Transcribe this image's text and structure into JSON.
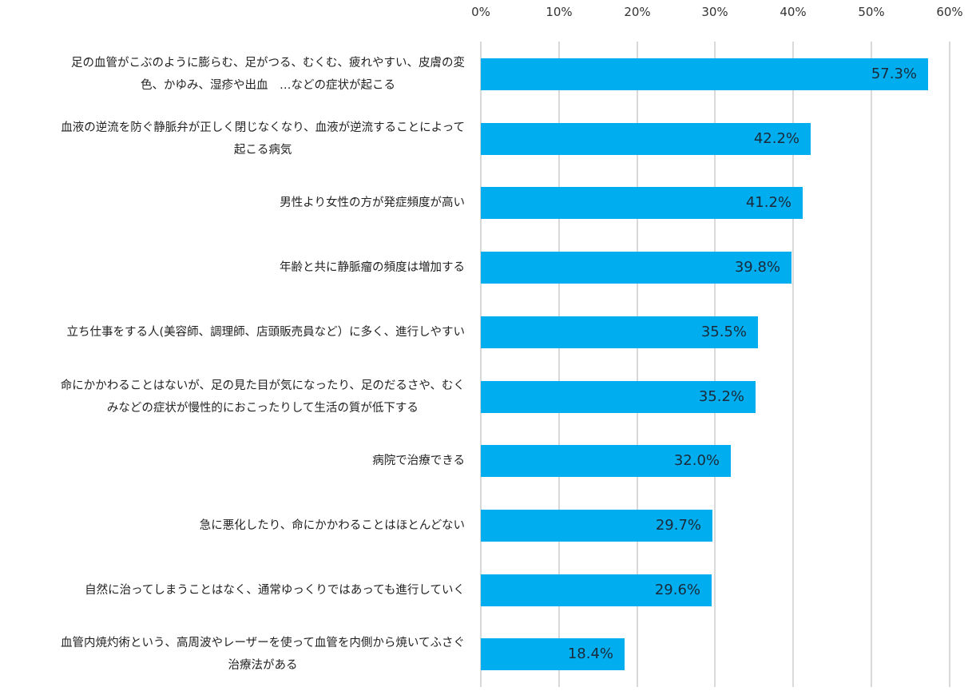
{
  "chart_data": {
    "type": "bar",
    "orientation": "horizontal",
    "title": "",
    "xlabel": "",
    "ylabel": "",
    "xlim": [
      0,
      60
    ],
    "x_ticks": [
      "0%",
      "10%",
      "20%",
      "30%",
      "40%",
      "50%",
      "60%"
    ],
    "grid": true,
    "legend": "none",
    "bar_color": "#00aeef",
    "categories": [
      "足の血管がこぶのように膨らむ、足がつる、むくむ、疲れやすい、皮膚の変色、かゆみ、湿疹や出血　…などの症状が起こる",
      "血液の逆流を防ぐ静脈弁が正しく閉じなくなり、血液が逆流することによって起こる病気",
      "男性より女性の方が発症頻度が高い",
      "年齢と共に静脈瘤の頻度は増加する",
      "立ち仕事をする人(美容師、調理師、店頭販売員など）に多く、進行しやすい",
      "命にかかわることはないが、足の見た目が気になったり、足のだるさや、むくみなどの症状が慢性的におこったりして生活の質が低下する",
      "病院で治療できる",
      "急に悪化したり、命にかかわることはほとんどない",
      "自然に治ってしまうことはなく、通常ゆっくりではあっても進行していく",
      "血管内焼灼術という、高周波やレーザーを使って血管を内側から焼いてふさぐ治療法がある"
    ],
    "values": [
      57.3,
      42.2,
      41.2,
      39.8,
      35.5,
      35.2,
      32.0,
      29.7,
      29.6,
      18.4
    ]
  },
  "axis": {
    "ticks": [
      "0%",
      "10%",
      "20%",
      "30%",
      "40%",
      "50%",
      "60%"
    ]
  },
  "rows": [
    {
      "lines": [
        "足の血管がこぶのように膨らむ、足がつる、むくむ、疲れやすい、皮膚の変",
        "色、かゆみ、湿疹や出血　…などの症状が起こる"
      ],
      "value": 57.3,
      "label": "57.3%"
    },
    {
      "lines": [
        "血液の逆流を防ぐ静脈弁が正しく閉じなくなり、血液が逆流することによって",
        "起こる病気"
      ],
      "value": 42.2,
      "label": "42.2%"
    },
    {
      "lines": [
        "男性より女性の方が発症頻度が高い",
        ""
      ],
      "value": 41.2,
      "label": "41.2%"
    },
    {
      "lines": [
        "年齢と共に静脈瘤の頻度は増加する",
        ""
      ],
      "value": 39.8,
      "label": "39.8%"
    },
    {
      "lines": [
        "立ち仕事をする人(美容師、調理師、店頭販売員など）に多く、進行しやすい",
        ""
      ],
      "value": 35.5,
      "label": "35.5%"
    },
    {
      "lines": [
        "命にかかわることはないが、足の見た目が気になったり、足のだるさや、むく",
        "みなどの症状が慢性的におこったりして生活の質が低下する"
      ],
      "value": 35.2,
      "label": "35.2%"
    },
    {
      "lines": [
        "病院で治療できる",
        ""
      ],
      "value": 32.0,
      "label": "32.0%"
    },
    {
      "lines": [
        "急に悪化したり、命にかかわることはほとんどない",
        ""
      ],
      "value": 29.7,
      "label": "29.7%"
    },
    {
      "lines": [
        "自然に治ってしまうことはなく、通常ゆっくりではあっても進行していく",
        ""
      ],
      "value": 29.6,
      "label": "29.6%"
    },
    {
      "lines": [
        "血管内焼灼術という、高周波やレーザーを使って血管を内側から焼いてふさぐ",
        "治療法がある"
      ],
      "value": 18.4,
      "label": "18.4%"
    }
  ]
}
